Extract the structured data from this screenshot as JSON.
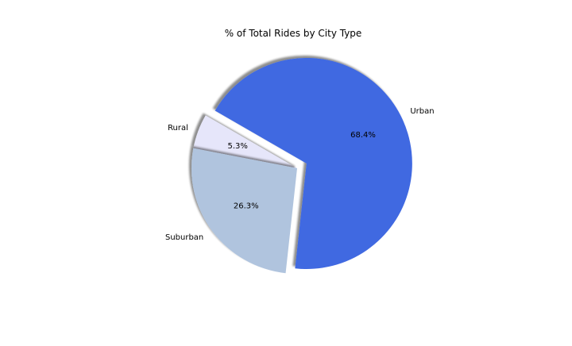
{
  "chart_data": {
    "type": "pie",
    "title": "% of Total Rides by City Type",
    "slices": [
      {
        "label": "Rural",
        "value": 5.3,
        "pct_label": "5.3%",
        "color": "#e6e6fa",
        "explode": false
      },
      {
        "label": "Suburban",
        "value": 26.3,
        "pct_label": "26.3%",
        "color": "#b0c4de",
        "explode": false
      },
      {
        "label": "Urban",
        "value": 68.4,
        "pct_label": "68.4%",
        "color": "#4169e1",
        "explode": true
      }
    ],
    "shadow": true,
    "legend": "none"
  }
}
